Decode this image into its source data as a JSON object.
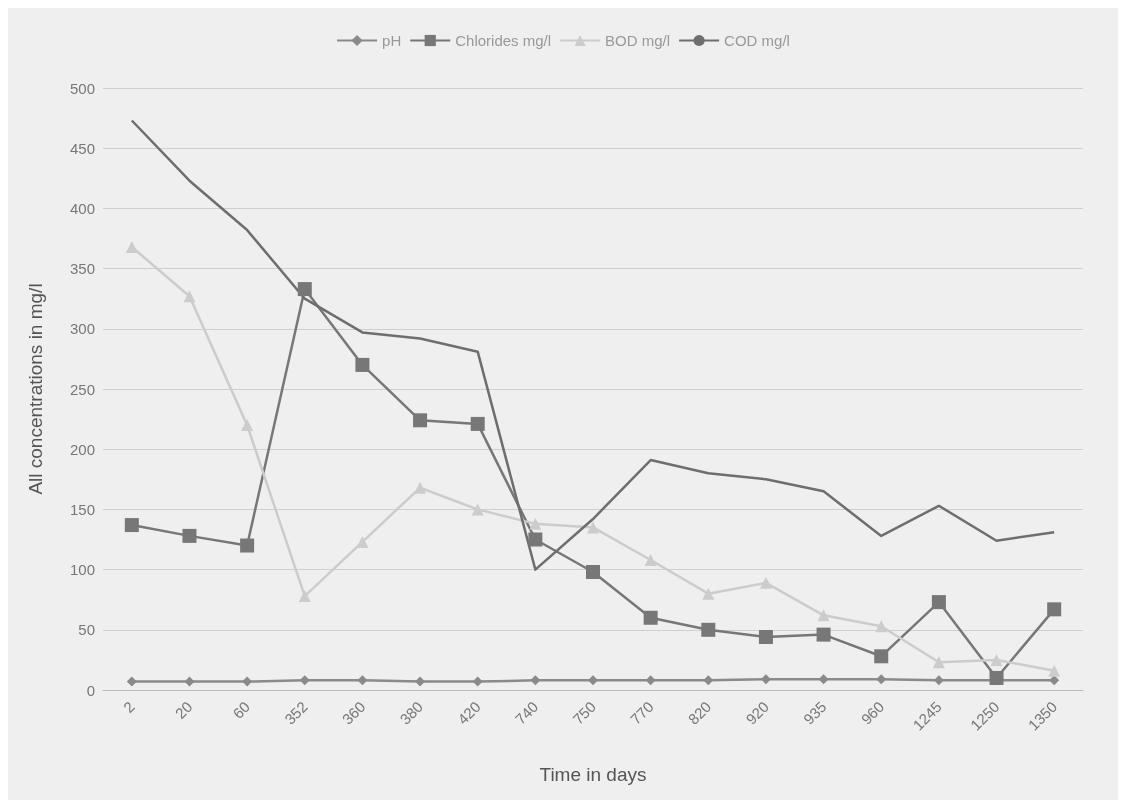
{
  "chart_data": {
    "type": "line",
    "xlabel": "Time in days",
    "ylabel": "All concentrations in mg/l",
    "categories": [
      "2",
      "20",
      "60",
      "352",
      "360",
      "380",
      "420",
      "740",
      "750",
      "770",
      "820",
      "920",
      "935",
      "960",
      "1245",
      "1250",
      "1350"
    ],
    "series": [
      {
        "name": "pH",
        "color": "#8a8a8a",
        "marker": "diamond",
        "values": [
          7,
          7,
          7,
          8,
          8,
          7,
          7,
          8,
          8,
          8,
          8,
          9,
          9,
          9,
          8,
          8,
          8
        ]
      },
      {
        "name": "Chlorides mg/l",
        "color": "#777777",
        "marker": "square",
        "values": [
          137,
          128,
          120,
          333,
          270,
          224,
          221,
          125,
          98,
          60,
          50,
          44,
          46,
          28,
          73,
          10,
          67
        ]
      },
      {
        "name": "BOD mg/l",
        "color": "#cccccc",
        "marker": "triangle",
        "values": [
          368,
          327,
          220,
          78,
          123,
          168,
          150,
          138,
          135,
          108,
          80,
          89,
          62,
          53,
          23,
          25,
          16
        ]
      },
      {
        "name": "COD mg/l",
        "color": "#6e6e6e",
        "marker": "none",
        "values": [
          473,
          423,
          382,
          325,
          297,
          292,
          281,
          100,
          142,
          191,
          180,
          175,
          165,
          128,
          153,
          124,
          131
        ]
      }
    ],
    "ylim": [
      0,
      500
    ],
    "yticks": [
      0,
      50,
      100,
      150,
      200,
      250,
      300,
      350,
      400,
      450,
      500
    ],
    "grid": "y",
    "legend": "top"
  }
}
